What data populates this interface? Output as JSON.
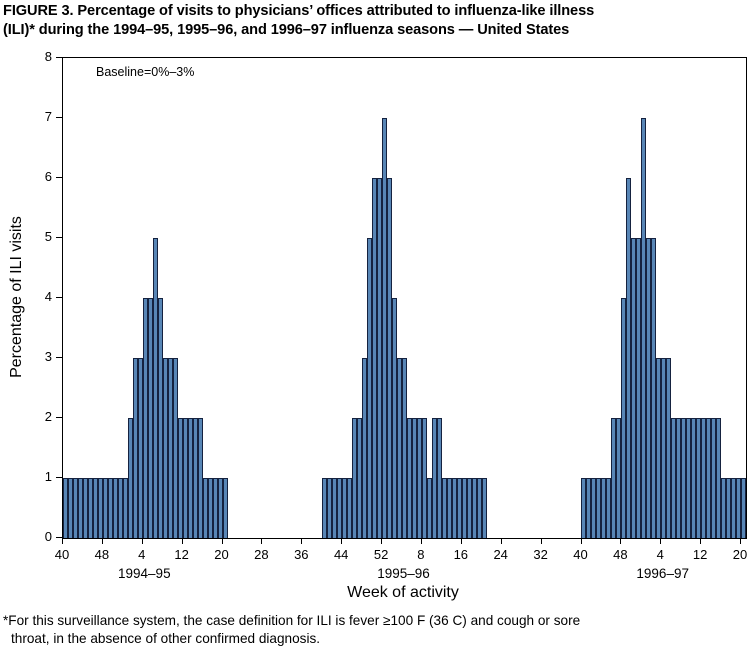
{
  "title": {
    "line1": "FIGURE 3. Percentage of visits to physicians’ offices attributed to influenza-like illness",
    "line2": "(ILI)* during the 1994–95, 1995–96, and 1996–97 influenza seasons — United States"
  },
  "footnote": {
    "line1": "*For this surveillance system, the case definition for ILI is fever ≥100 F (36 C) and cough or sore",
    "line2": "throat, in the absence of other confirmed diagnosis."
  },
  "chart_data": {
    "type": "bar",
    "title": "",
    "xlabel": "Week of activity",
    "ylabel": "Percentage of ILI visits",
    "annotation": "Baseline=0%–3%",
    "ylim": [
      0,
      8
    ],
    "yticks": [
      0,
      1,
      2,
      3,
      4,
      5,
      6,
      7,
      8
    ],
    "x_axis_weeks_domain": 137,
    "x_tick_step": 8,
    "x_tick_labels": [
      "40",
      "48",
      "4",
      "12",
      "20",
      "28",
      "36",
      "44",
      "52",
      "8",
      "16",
      "24",
      "32",
      "40",
      "48",
      "4",
      "12",
      "20"
    ],
    "grid": "off",
    "legend": "none",
    "bar_fill": "#5886b6",
    "bar_edge": "#15223f",
    "seasons": [
      {
        "label": "1994–95",
        "start_index": 0,
        "weeks": [
          40,
          41,
          42,
          43,
          44,
          45,
          46,
          47,
          48,
          49,
          50,
          51,
          52,
          1,
          2,
          3,
          4,
          5,
          6,
          7,
          8,
          9,
          10,
          11,
          12,
          13,
          14,
          15,
          16,
          17,
          18,
          19,
          20
        ],
        "values": [
          1,
          1,
          1,
          1,
          1,
          1,
          1,
          1,
          1,
          1,
          1,
          1,
          1,
          2,
          3,
          3,
          4,
          4,
          5,
          4,
          3,
          3,
          3,
          2,
          2,
          2,
          2,
          2,
          1,
          1,
          1,
          1,
          1
        ]
      },
      {
        "label": "1995–96",
        "start_index": 52,
        "weeks": [
          40,
          41,
          42,
          43,
          44,
          45,
          46,
          47,
          48,
          49,
          50,
          51,
          52,
          1,
          2,
          3,
          4,
          5,
          6,
          7,
          8,
          9,
          10,
          11,
          12,
          13,
          14,
          15,
          16,
          17,
          18,
          19,
          20
        ],
        "values": [
          1,
          1,
          1,
          1,
          1,
          1,
          2,
          2,
          3,
          5,
          6,
          6,
          7,
          6,
          4,
          3,
          3,
          2,
          2,
          2,
          2,
          1,
          2,
          2,
          1,
          1,
          1,
          1,
          1,
          1,
          1,
          1,
          1
        ]
      },
      {
        "label": "1996–97",
        "start_index": 104,
        "weeks": [
          40,
          41,
          42,
          43,
          44,
          45,
          46,
          47,
          48,
          49,
          50,
          51,
          52,
          1,
          2,
          3,
          4,
          5,
          6,
          7,
          8,
          9,
          10,
          11,
          12,
          13,
          14,
          15,
          16,
          17,
          18,
          19,
          20
        ],
        "values": [
          1,
          1,
          1,
          1,
          1,
          1,
          2,
          2,
          4,
          6,
          5,
          5,
          7,
          5,
          5,
          3,
          3,
          3,
          2,
          2,
          2,
          2,
          2,
          2,
          2,
          2,
          2,
          2,
          1,
          1,
          1,
          1,
          1
        ]
      }
    ]
  }
}
